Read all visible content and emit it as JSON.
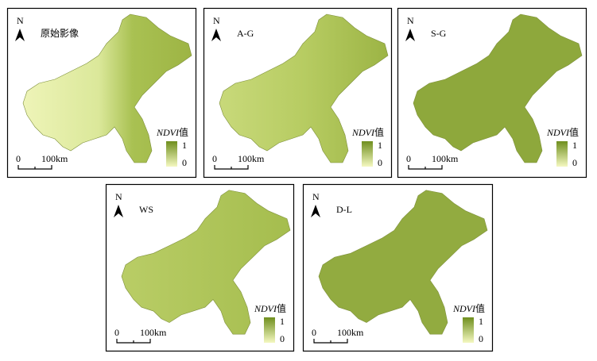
{
  "panels": [
    {
      "label": "原始影像",
      "north": "N",
      "legend_title_italic": "NDVI",
      "legend_title_suffix": "值",
      "legend_max": "1",
      "legend_min": "0",
      "scale_start": "0",
      "scale_end": "100km"
    },
    {
      "label": "A-G",
      "north": "N",
      "legend_title_italic": "NDVI",
      "legend_title_suffix": "值",
      "legend_max": "1",
      "legend_min": "0",
      "scale_start": "0",
      "scale_end": "100km"
    },
    {
      "label": "S-G",
      "north": "N",
      "legend_title_italic": "NDVI",
      "legend_title_suffix": "值",
      "legend_max": "1",
      "legend_min": "0",
      "scale_start": "0",
      "scale_end": "100km"
    },
    {
      "label": "WS",
      "north": "N",
      "legend_title_italic": "NDVI",
      "legend_title_suffix": "值",
      "legend_max": "1",
      "legend_min": "0",
      "scale_start": "0",
      "scale_end": "100km"
    },
    {
      "label": "D-L",
      "north": "N",
      "legend_title_italic": "NDVI",
      "legend_title_suffix": "值",
      "legend_max": "1",
      "legend_min": "0",
      "scale_start": "0",
      "scale_end": "100km"
    }
  ]
}
